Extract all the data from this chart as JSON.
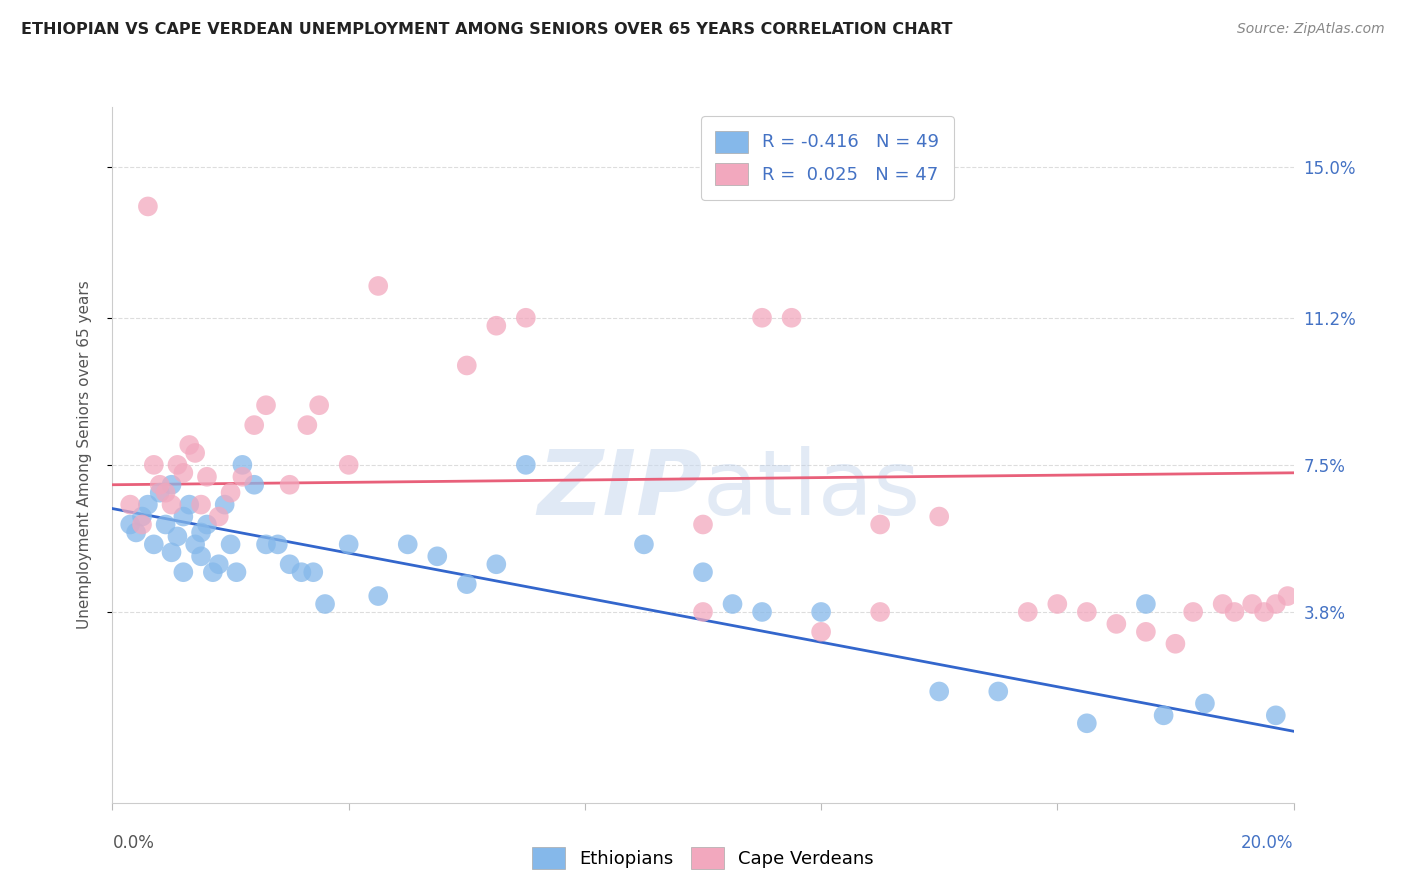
{
  "title": "ETHIOPIAN VS CAPE VERDEAN UNEMPLOYMENT AMONG SENIORS OVER 65 YEARS CORRELATION CHART",
  "source": "Source: ZipAtlas.com",
  "ylabel": "Unemployment Among Seniors over 65 years",
  "xlim": [
    0.0,
    0.2
  ],
  "ylim": [
    -0.01,
    0.165
  ],
  "ytick_positions": [
    0.038,
    0.075,
    0.112,
    0.15
  ],
  "ytick_labels": [
    "3.8%",
    "7.5%",
    "11.2%",
    "15.0%"
  ],
  "blue_color": "#85B8EA",
  "pink_color": "#F2A8BE",
  "blue_line_color": "#3366CC",
  "pink_line_color": "#E8607A",
  "legend_r_blue": "R = -0.416",
  "legend_n_blue": "N = 49",
  "legend_r_pink": "R =  0.025",
  "legend_n_pink": "N = 47",
  "watermark_zip": "ZIP",
  "watermark_atlas": "atlas",
  "background_color": "#FFFFFF",
  "grid_color": "#DDDDDD",
  "title_color": "#222222",
  "axis_label_color": "#555555",
  "tick_label_color_right": "#4472C4",
  "legend_r_color": "#4472C4",
  "blue_scatter_x": [
    0.003,
    0.004,
    0.005,
    0.006,
    0.007,
    0.008,
    0.009,
    0.01,
    0.01,
    0.011,
    0.012,
    0.012,
    0.013,
    0.014,
    0.015,
    0.015,
    0.016,
    0.017,
    0.018,
    0.019,
    0.02,
    0.021,
    0.022,
    0.024,
    0.026,
    0.028,
    0.03,
    0.032,
    0.034,
    0.036,
    0.04,
    0.045,
    0.05,
    0.055,
    0.06,
    0.065,
    0.07,
    0.09,
    0.1,
    0.105,
    0.11,
    0.12,
    0.14,
    0.15,
    0.165,
    0.175,
    0.178,
    0.185,
    0.197
  ],
  "blue_scatter_y": [
    0.06,
    0.058,
    0.062,
    0.065,
    0.055,
    0.068,
    0.06,
    0.053,
    0.07,
    0.057,
    0.062,
    0.048,
    0.065,
    0.055,
    0.052,
    0.058,
    0.06,
    0.048,
    0.05,
    0.065,
    0.055,
    0.048,
    0.075,
    0.07,
    0.055,
    0.055,
    0.05,
    0.048,
    0.048,
    0.04,
    0.055,
    0.042,
    0.055,
    0.052,
    0.045,
    0.05,
    0.075,
    0.055,
    0.048,
    0.04,
    0.038,
    0.038,
    0.018,
    0.018,
    0.01,
    0.04,
    0.012,
    0.015,
    0.012
  ],
  "pink_scatter_x": [
    0.003,
    0.005,
    0.006,
    0.007,
    0.008,
    0.009,
    0.01,
    0.011,
    0.012,
    0.013,
    0.014,
    0.015,
    0.016,
    0.018,
    0.02,
    0.022,
    0.024,
    0.026,
    0.03,
    0.033,
    0.035,
    0.04,
    0.045,
    0.06,
    0.065,
    0.07,
    0.1,
    0.12,
    0.13,
    0.14,
    0.155,
    0.16,
    0.165,
    0.17,
    0.175,
    0.18,
    0.183,
    0.188,
    0.19,
    0.193,
    0.195,
    0.197,
    0.199,
    0.1,
    0.11,
    0.115,
    0.13
  ],
  "pink_scatter_y": [
    0.065,
    0.06,
    0.14,
    0.075,
    0.07,
    0.068,
    0.065,
    0.075,
    0.073,
    0.08,
    0.078,
    0.065,
    0.072,
    0.062,
    0.068,
    0.072,
    0.085,
    0.09,
    0.07,
    0.085,
    0.09,
    0.075,
    0.12,
    0.1,
    0.11,
    0.112,
    0.038,
    0.033,
    0.038,
    0.062,
    0.038,
    0.04,
    0.038,
    0.035,
    0.033,
    0.03,
    0.038,
    0.04,
    0.038,
    0.04,
    0.038,
    0.04,
    0.042,
    0.06,
    0.112,
    0.112,
    0.06
  ],
  "blue_trend_start_y": 0.064,
  "blue_trend_end_y": 0.008,
  "pink_trend_start_y": 0.07,
  "pink_trend_end_y": 0.073
}
